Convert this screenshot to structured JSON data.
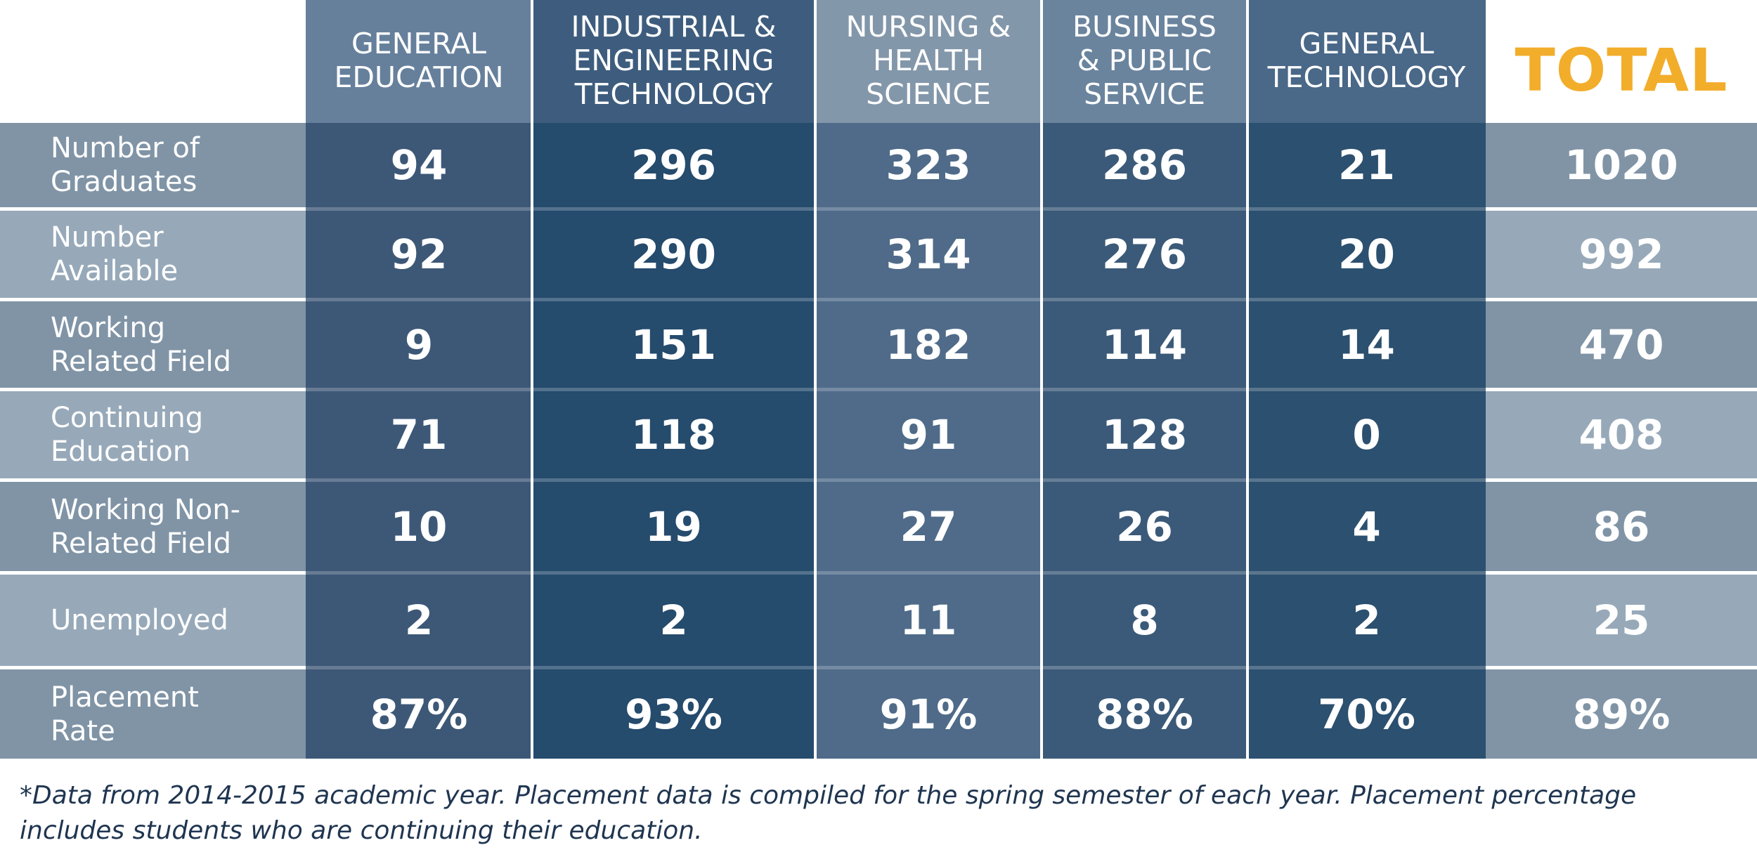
{
  "chart_data": {
    "type": "table",
    "columns": [
      "GENERAL\nEDUCATION",
      "INDUSTRIAL &\nENGINEERING\nTECHNOLOGY",
      "NURSING &\nHEALTH\nSCIENCE",
      "BUSINESS\n& PUBLIC\nSERVICE",
      "GENERAL\nTECHNOLOGY"
    ],
    "total_label": "TOTAL",
    "rows": [
      {
        "label": "Number of\nGraduates",
        "values": [
          "94",
          "296",
          "323",
          "286",
          "21"
        ],
        "total": "1020"
      },
      {
        "label": "Number\nAvailable",
        "values": [
          "92",
          "290",
          "314",
          "276",
          "20"
        ],
        "total": "992"
      },
      {
        "label": "Working\nRelated Field",
        "values": [
          "9",
          "151",
          "182",
          "114",
          "14"
        ],
        "total": "470"
      },
      {
        "label": "Continuing\nEducation",
        "values": [
          "71",
          "118",
          "91",
          "128",
          "0"
        ],
        "total": "408"
      },
      {
        "label": "Working Non-\nRelated Field",
        "values": [
          "10",
          "19",
          "27",
          "26",
          "4"
        ],
        "total": "86"
      },
      {
        "label": "Unemployed",
        "values": [
          "2",
          "2",
          "11",
          "8",
          "2"
        ],
        "total": "25"
      },
      {
        "label": "Placement\nRate",
        "values": [
          "87%",
          "93%",
          "91%",
          "88%",
          "70%"
        ],
        "total": "89%"
      }
    ]
  },
  "footnote": "*Data from 2014-2015 academic year. Placement data is compiled for the spring semester of each year. Placement percentage includes students who are continuing their education.",
  "colors": {
    "total_accent": "#f2ad2b",
    "column_headers": [
      "#66809c",
      "#3e5d7e",
      "#8397aa",
      "#6a849e",
      "#4a6888"
    ],
    "column_cells": [
      "#3d5877",
      "#254b6d",
      "#4f6b89",
      "#3b5a79",
      "#2c506f"
    ],
    "row_band_dark": "#8094a6",
    "row_band_light": "#97a9b9"
  }
}
